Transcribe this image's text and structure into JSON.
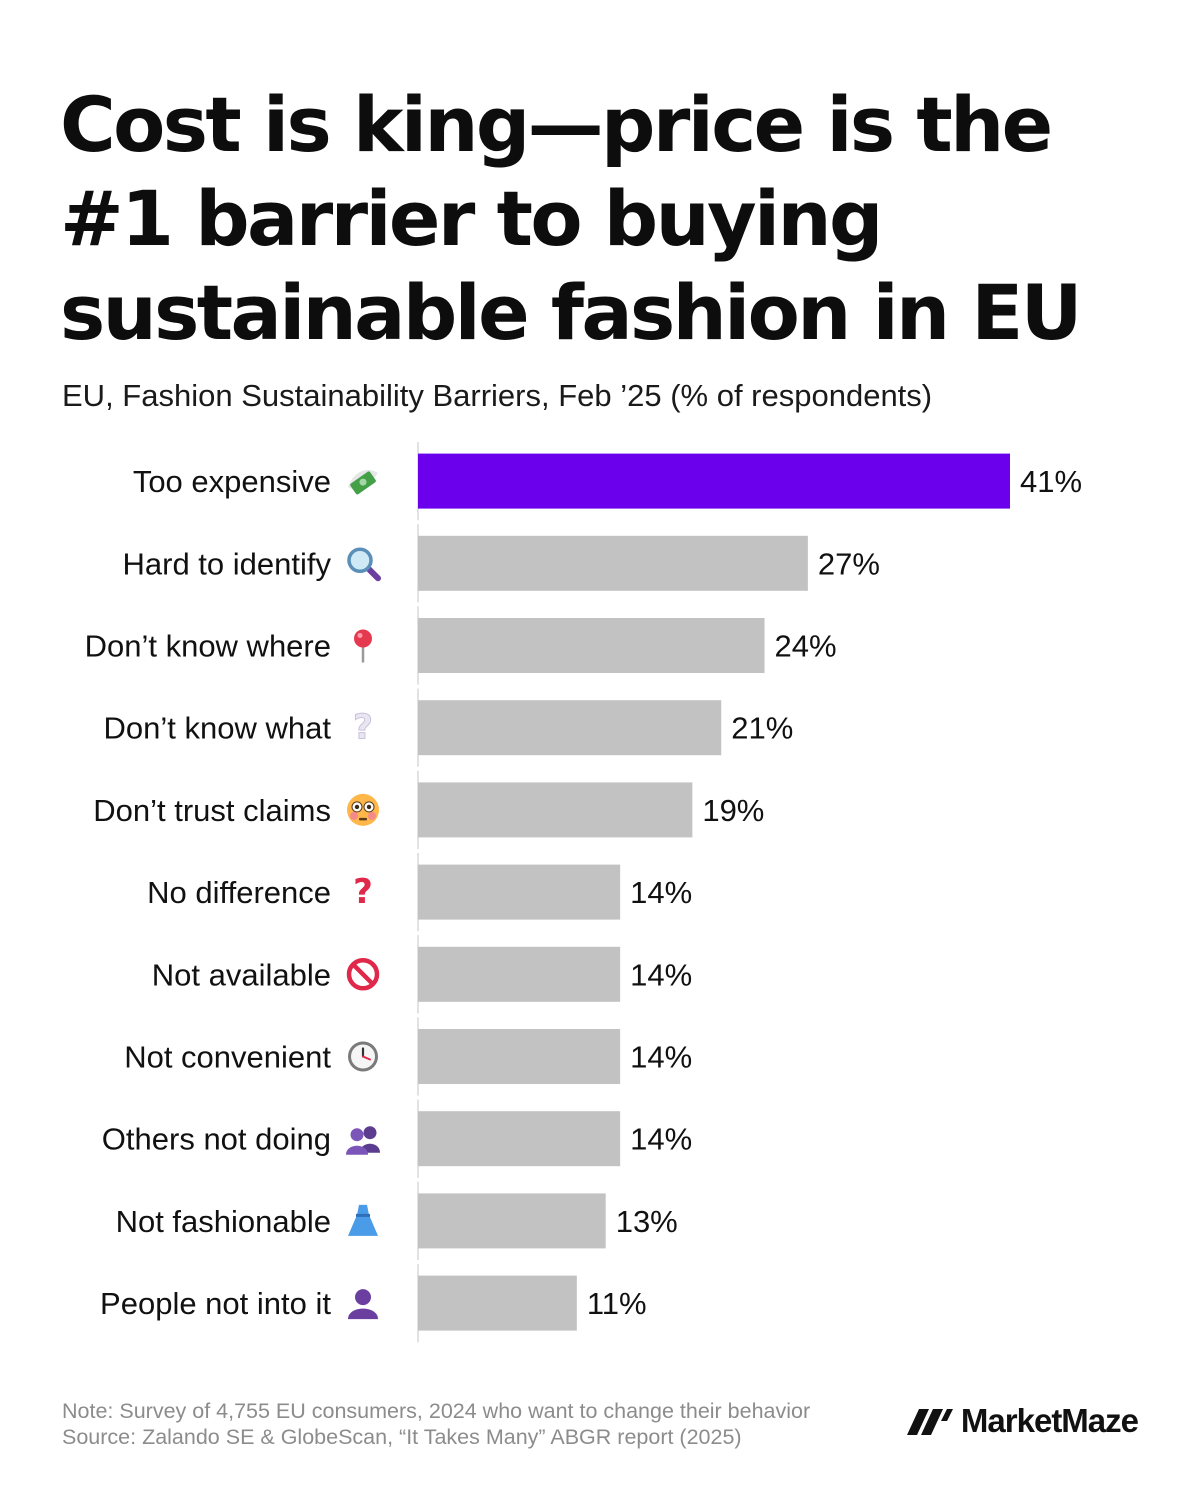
{
  "title_lines": [
    "Cost is king—price is the",
    "#1 barrier to buying",
    "sustainable fashion in EU"
  ],
  "subtitle": "EU, Fashion Sustainability Barriers, Feb ’25 (% of respondents)",
  "chart_data": {
    "type": "bar",
    "orientation": "horizontal",
    "categories": [
      "Too expensive",
      "Hard to identify",
      "Don’t know where",
      "Don’t know what",
      "Don’t trust claims",
      "No difference",
      "Not available",
      "Not convenient",
      "Others not doing",
      "Not fashionable",
      "People not into it"
    ],
    "values": [
      41,
      27,
      24,
      21,
      19,
      14,
      14,
      14,
      14,
      13,
      11
    ],
    "value_labels": [
      "41%",
      "27%",
      "24%",
      "21%",
      "19%",
      "14%",
      "14%",
      "14%",
      "14%",
      "13%",
      "11%"
    ],
    "unit": "%",
    "icons": [
      "money-with-wings-icon",
      "magnifying-glass-icon",
      "pushpin-icon",
      "white-question-icon",
      "flushed-face-icon",
      "red-question-icon",
      "prohibited-icon",
      "clock-icon",
      "busts-icon",
      "dress-icon",
      "bust-icon"
    ],
    "xlim": [
      0,
      41
    ],
    "highlight_index": 0,
    "colors": {
      "highlight": "#6b00ec",
      "default": "#c2c2c2",
      "axis": "#d8d8d8"
    }
  },
  "footnote": {
    "note": "Note: Survey of 4,755 EU consumers, 2024 who want to change their behavior",
    "source": "Source: Zalando SE & GlobeScan, “It Takes Many” ABGR report (2025)"
  },
  "brand": {
    "name": "MarketMaze",
    "logo_icon": "marketmaze-logo-icon"
  }
}
